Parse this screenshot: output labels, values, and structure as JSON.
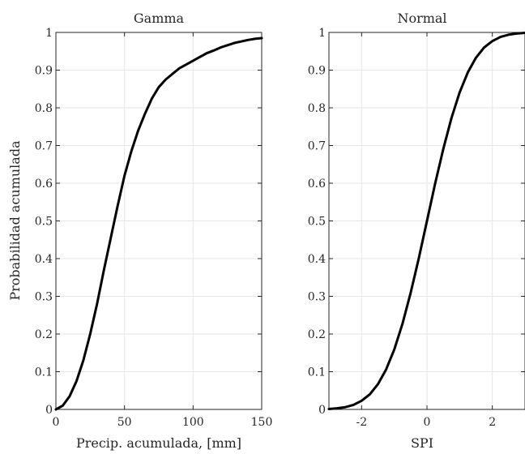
{
  "figure": {
    "ylabel": "Probabilidad acumulada"
  },
  "chart_data": [
    {
      "type": "line",
      "title": "Gamma",
      "xlabel": "Precip. acumulada, [mm]",
      "ylabel": "Probabilidad acumulada",
      "xlim": [
        0,
        150
      ],
      "ylim": [
        0,
        1
      ],
      "grid": true,
      "xticks": [
        0,
        50,
        100,
        150
      ],
      "xtick_labels": [
        "0",
        "50",
        "100",
        "150"
      ],
      "yticks": [
        0,
        0.1,
        0.2,
        0.3,
        0.4,
        0.5,
        0.6,
        0.7,
        0.8,
        0.9,
        1
      ],
      "ytick_labels": [
        "0",
        "0.1",
        "0.2",
        "0.3",
        "0.4",
        "0.5",
        "0.6",
        "0.7",
        "0.8",
        "0.9",
        "1"
      ],
      "series": [
        {
          "color": "#000000",
          "x": [
            0,
            5,
            10,
            15,
            20,
            25,
            30,
            35,
            40,
            45,
            50,
            55,
            60,
            65,
            70,
            75,
            80,
            85,
            90,
            95,
            100,
            105,
            110,
            115,
            120,
            125,
            130,
            135,
            140,
            145,
            150
          ],
          "y": [
            0,
            0.01,
            0.035,
            0.075,
            0.13,
            0.2,
            0.28,
            0.37,
            0.455,
            0.54,
            0.62,
            0.685,
            0.74,
            0.785,
            0.825,
            0.855,
            0.875,
            0.89,
            0.905,
            0.915,
            0.925,
            0.935,
            0.945,
            0.952,
            0.96,
            0.966,
            0.972,
            0.976,
            0.98,
            0.983,
            0.985
          ]
        }
      ]
    },
    {
      "type": "line",
      "title": "Normal",
      "xlabel": "SPI",
      "xlim": [
        -3,
        3
      ],
      "ylim": [
        0,
        1
      ],
      "grid": true,
      "xticks": [
        -2,
        0,
        2
      ],
      "xtick_labels": [
        "-2",
        "0",
        "2"
      ],
      "yticks": [
        0,
        0.1,
        0.2,
        0.3,
        0.4,
        0.5,
        0.6,
        0.7,
        0.8,
        0.9,
        1
      ],
      "ytick_labels": [
        "0",
        "0.1",
        "0.2",
        "0.3",
        "0.4",
        "0.5",
        "0.6",
        "0.7",
        "0.8",
        "0.9",
        "1"
      ],
      "series": [
        {
          "color": "#000000",
          "x": [
            -3,
            -2.75,
            -2.5,
            -2.25,
            -2,
            -1.75,
            -1.5,
            -1.25,
            -1,
            -0.75,
            -0.5,
            -0.25,
            0,
            0.25,
            0.5,
            0.75,
            1,
            1.25,
            1.5,
            1.75,
            2,
            2.25,
            2.5,
            2.75,
            3
          ],
          "y": [
            0.001,
            0.003,
            0.006,
            0.012,
            0.023,
            0.04,
            0.067,
            0.106,
            0.159,
            0.227,
            0.309,
            0.401,
            0.5,
            0.599,
            0.691,
            0.773,
            0.841,
            0.894,
            0.933,
            0.96,
            0.977,
            0.988,
            0.994,
            0.997,
            0.999
          ]
        }
      ]
    }
  ]
}
